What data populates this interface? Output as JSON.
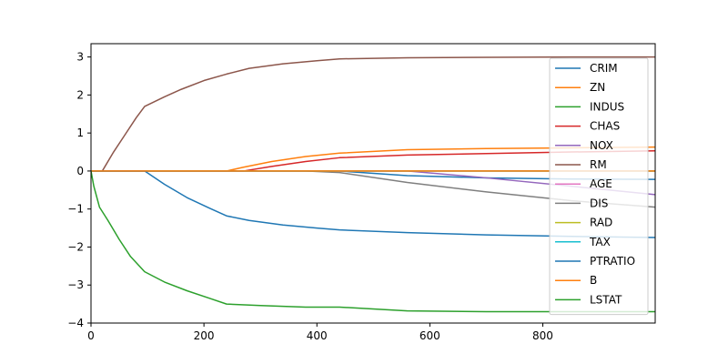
{
  "chart_data": {
    "type": "line",
    "title": "",
    "xlabel": "",
    "ylabel": "",
    "xlim": [
      0,
      999
    ],
    "ylim": [
      -4,
      3.35
    ],
    "xticks": [
      0,
      200,
      400,
      600,
      800
    ],
    "yticks": [
      -4,
      -3,
      -2,
      -1,
      0,
      1,
      2,
      3
    ],
    "ytick_labels": [
      "−4",
      "−3",
      "−2",
      "−1",
      "0",
      "1",
      "2",
      "3"
    ],
    "grid": false,
    "legend_position": "right",
    "series": [
      {
        "name": "CRIM",
        "color": "#1f77b4",
        "points": [
          [
            0,
            0
          ],
          [
            440,
            0
          ],
          [
            560,
            -0.12
          ],
          [
            700,
            -0.18
          ],
          [
            850,
            -0.21
          ],
          [
            999,
            -0.22
          ]
        ]
      },
      {
        "name": "ZN",
        "color": "#ff7f0e",
        "points": [
          [
            0,
            0
          ],
          [
            240,
            0
          ],
          [
            270,
            0.1
          ],
          [
            320,
            0.25
          ],
          [
            380,
            0.38
          ],
          [
            440,
            0.47
          ],
          [
            560,
            0.56
          ],
          [
            700,
            0.59
          ],
          [
            850,
            0.61
          ],
          [
            999,
            0.63
          ]
        ]
      },
      {
        "name": "INDUS",
        "color": "#2ca02c",
        "points": [
          [
            0,
            0
          ],
          [
            999,
            0
          ]
        ]
      },
      {
        "name": "CHAS",
        "color": "#d62728",
        "points": [
          [
            0,
            0
          ],
          [
            270,
            0
          ],
          [
            320,
            0.12
          ],
          [
            380,
            0.25
          ],
          [
            440,
            0.35
          ],
          [
            560,
            0.42
          ],
          [
            700,
            0.46
          ],
          [
            850,
            0.5
          ],
          [
            999,
            0.53
          ]
        ]
      },
      {
        "name": "NOX",
        "color": "#9467bd",
        "points": [
          [
            0,
            0
          ],
          [
            560,
            0
          ],
          [
            700,
            -0.18
          ],
          [
            850,
            -0.4
          ],
          [
            999,
            -0.62
          ]
        ]
      },
      {
        "name": "RM",
        "color": "#8c564b",
        "points": [
          [
            0,
            0
          ],
          [
            20,
            0
          ],
          [
            40,
            0.5
          ],
          [
            60,
            0.95
          ],
          [
            80,
            1.4
          ],
          [
            95,
            1.7
          ],
          [
            130,
            1.95
          ],
          [
            160,
            2.15
          ],
          [
            200,
            2.38
          ],
          [
            240,
            2.55
          ],
          [
            280,
            2.7
          ],
          [
            340,
            2.82
          ],
          [
            400,
            2.9
          ],
          [
            440,
            2.95
          ],
          [
            560,
            2.98
          ],
          [
            700,
            2.99
          ],
          [
            850,
            3.0
          ],
          [
            999,
            3.0
          ]
        ]
      },
      {
        "name": "AGE",
        "color": "#e377c2",
        "points": [
          [
            0,
            0
          ],
          [
            999,
            0
          ]
        ]
      },
      {
        "name": "DIS",
        "color": "#7f7f7f",
        "points": [
          [
            0,
            0
          ],
          [
            380,
            0
          ],
          [
            440,
            -0.04
          ],
          [
            560,
            -0.3
          ],
          [
            700,
            -0.55
          ],
          [
            850,
            -0.78
          ],
          [
            999,
            -0.95
          ]
        ]
      },
      {
        "name": "RAD",
        "color": "#bcbd22",
        "points": [
          [
            0,
            0
          ],
          [
            999,
            0
          ]
        ]
      },
      {
        "name": "TAX",
        "color": "#17becf",
        "points": [
          [
            0,
            0
          ],
          [
            999,
            0
          ]
        ]
      },
      {
        "name": "PTRATIO",
        "color": "#1f77b4",
        "points": [
          [
            0,
            0
          ],
          [
            95,
            0
          ],
          [
            130,
            -0.35
          ],
          [
            170,
            -0.7
          ],
          [
            210,
            -0.98
          ],
          [
            240,
            -1.18
          ],
          [
            280,
            -1.3
          ],
          [
            340,
            -1.42
          ],
          [
            400,
            -1.5
          ],
          [
            440,
            -1.55
          ],
          [
            560,
            -1.62
          ],
          [
            700,
            -1.68
          ],
          [
            850,
            -1.72
          ],
          [
            999,
            -1.75
          ]
        ]
      },
      {
        "name": "B",
        "color": "#ff7f0e",
        "points": [
          [
            0,
            0
          ],
          [
            240,
            0
          ],
          [
            440,
            0
          ],
          [
            999,
            0
          ]
        ]
      },
      {
        "name": "LSTAT",
        "color": "#2ca02c",
        "points": [
          [
            0,
            0
          ],
          [
            5,
            -0.4
          ],
          [
            15,
            -0.95
          ],
          [
            30,
            -1.3
          ],
          [
            50,
            -1.8
          ],
          [
            70,
            -2.25
          ],
          [
            95,
            -2.65
          ],
          [
            130,
            -2.92
          ],
          [
            170,
            -3.15
          ],
          [
            210,
            -3.35
          ],
          [
            240,
            -3.5
          ],
          [
            300,
            -3.54
          ],
          [
            380,
            -3.58
          ],
          [
            440,
            -3.58
          ],
          [
            560,
            -3.68
          ],
          [
            700,
            -3.7
          ],
          [
            850,
            -3.7
          ],
          [
            999,
            -3.7
          ]
        ]
      }
    ]
  }
}
